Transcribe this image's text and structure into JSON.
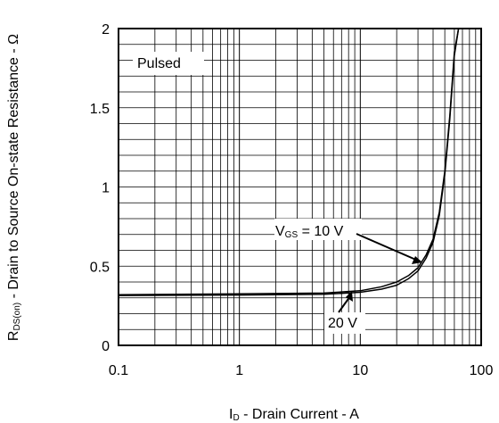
{
  "chart_data": {
    "type": "line",
    "title": "",
    "xscale": "log",
    "xlim": [
      0.1,
      100
    ],
    "ylim": [
      0,
      2
    ],
    "grid": true,
    "x_ticks": [
      "0.1",
      "1",
      "10",
      "100"
    ],
    "y_ticks": [
      "0",
      "0.5",
      "1",
      "1.5",
      "2"
    ],
    "xlabel": {
      "main": "I",
      "sub": "D",
      "rest": " - Drain Current - A"
    },
    "ylabel": {
      "main": "R",
      "sub": "DS(on)",
      "rest": " - Drain to Source On-state Resistance - Ω"
    },
    "annotations": {
      "pulsed": "Pulsed",
      "vgs10": {
        "main": "V",
        "sub": "GS",
        "rest": " = 10 V"
      },
      "vgs20": "20 V"
    },
    "series": [
      {
        "name": "VGS = 10 V",
        "x": [
          0.1,
          1,
          5,
          10,
          15,
          20,
          25,
          30,
          35,
          40,
          45,
          50,
          55,
          60,
          65
        ],
        "y": [
          0.32,
          0.325,
          0.33,
          0.345,
          0.37,
          0.4,
          0.44,
          0.49,
          0.57,
          0.67,
          0.84,
          1.1,
          1.45,
          1.85,
          2.1
        ]
      },
      {
        "name": "20 V",
        "x": [
          0.1,
          1,
          5,
          10,
          15,
          20,
          25,
          30,
          35,
          40,
          45,
          50,
          55,
          60,
          65
        ],
        "y": [
          0.315,
          0.318,
          0.322,
          0.335,
          0.355,
          0.38,
          0.42,
          0.47,
          0.55,
          0.65,
          0.82,
          1.08,
          1.43,
          1.83,
          2.1
        ]
      }
    ]
  }
}
